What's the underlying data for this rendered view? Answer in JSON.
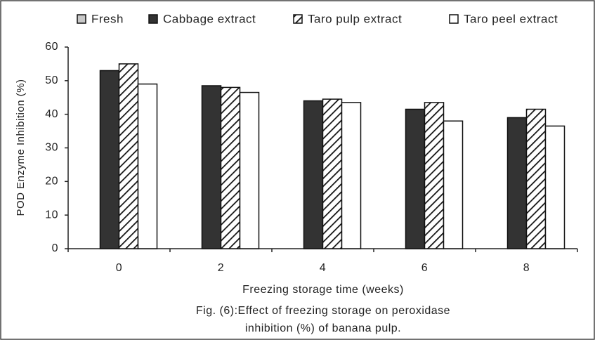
{
  "chart_data": {
    "type": "bar",
    "y_label": "POD Enzyme Inhibition (%)",
    "x_label": "Freezing storage time (weeks)",
    "caption": [
      "Fig. (6):Effect of freezing storage on peroxidase",
      "inhibition (%) of banana pulp."
    ],
    "categories": [
      "0",
      "2",
      "4",
      "6",
      "8"
    ],
    "series": [
      {
        "name": "Fresh",
        "color": "#c8c8c8",
        "values": [
          0,
          0,
          0,
          0,
          0
        ]
      },
      {
        "name": "Cabbage extract",
        "color": "#333333",
        "values": [
          53,
          48.5,
          44,
          41.5,
          39
        ]
      },
      {
        "name": "Taro pulp extract",
        "color": "#ffffff",
        "hatch": true,
        "values": [
          55,
          48,
          44.5,
          43.5,
          41.5
        ]
      },
      {
        "name": "Taro peel extract",
        "color": "#ffffff",
        "values": [
          49,
          46.5,
          43.5,
          38,
          36.5
        ]
      }
    ],
    "ylim": [
      0,
      60
    ],
    "yticks": [
      0,
      10,
      20,
      30,
      40,
      50,
      60
    ],
    "grid": false,
    "legend": "top"
  }
}
